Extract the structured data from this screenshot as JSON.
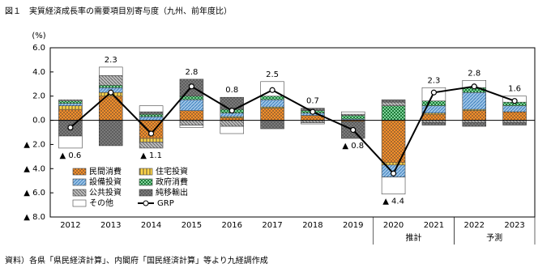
{
  "chart_data": {
    "type": "stacked-bar-line",
    "title": "図１　実質経済成長率の需要項目別寄与度（九州、前年度比）",
    "y_unit": "(%)",
    "categories": [
      "2012",
      "2013",
      "2014",
      "2015",
      "2016",
      "2017",
      "2018",
      "2019",
      "2020",
      "2021",
      "2022",
      "2023"
    ],
    "groups": [
      {
        "label": "推計",
        "from": 8,
        "to": 9
      },
      {
        "label": "予測",
        "from": 10,
        "to": 11
      }
    ],
    "ylim": [
      -8,
      6
    ],
    "yticks": [
      {
        "value": 6,
        "label": "6.0"
      },
      {
        "value": 4,
        "label": "4.0"
      },
      {
        "value": 2,
        "label": "2.0"
      },
      {
        "value": 0,
        "label": "0.0"
      },
      {
        "value": -2,
        "label": "▲ 2.0"
      },
      {
        "value": -4,
        "label": "▲ 4.0"
      },
      {
        "value": -6,
        "label": "▲ 6.0"
      },
      {
        "value": -8,
        "label": "▲ 8.0"
      }
    ],
    "series": [
      {
        "name": "民間消費",
        "color": "#f28e2b",
        "pattern": "dots",
        "values": [
          0.9,
          2.0,
          -1.5,
          0.8,
          0.2,
          1.0,
          0.4,
          -0.1,
          -3.5,
          0.5,
          0.8,
          0.7
        ]
      },
      {
        "name": "住宅投資",
        "color": "#ffd54a",
        "pattern": "vlines",
        "values": [
          0.3,
          0.3,
          -0.3,
          0,
          0.1,
          0.1,
          0,
          0,
          -0.2,
          0.1,
          0.1,
          0
        ]
      },
      {
        "name": "設備投資",
        "color": "#9cc3e6",
        "pattern": "diag",
        "values": [
          0.2,
          0.4,
          0.3,
          0.9,
          0.3,
          0.6,
          0.2,
          0.1,
          -1.0,
          0.6,
          1.4,
          0.5
        ]
      },
      {
        "name": "政府消費",
        "color": "#7fd39a",
        "pattern": "checks",
        "values": [
          0.2,
          0.2,
          0.2,
          0.3,
          0.3,
          0.3,
          0.2,
          0.3,
          1.2,
          0.4,
          0.4,
          0.3
        ]
      },
      {
        "name": "公共投資",
        "color": "#bdbdbd",
        "pattern": "diag2",
        "values": [
          0.1,
          0.8,
          -0.5,
          -0.4,
          -0.5,
          0,
          -0.2,
          0.1,
          0.3,
          -0.2,
          -0.2,
          -0.2
        ]
      },
      {
        "name": "純移輸出",
        "color": "#7a7a7a",
        "pattern": "dots",
        "values": [
          -1.3,
          -2.1,
          0.2,
          1.4,
          1.0,
          -0.7,
          0.2,
          -1.4,
          0.2,
          -0.2,
          -0.3,
          -0.2
        ]
      },
      {
        "name": "その他",
        "color": "#ffffff",
        "pattern": "none",
        "values": [
          -1.0,
          0.7,
          0.5,
          -0.2,
          -0.6,
          1.2,
          -0.1,
          0.2,
          -1.4,
          1.1,
          0.6,
          0.5
        ]
      }
    ],
    "line": {
      "name": "GRP",
      "color": "#000000",
      "values": [
        -0.6,
        2.3,
        -1.1,
        2.8,
        0.8,
        2.5,
        0.7,
        -0.8,
        -4.4,
        2.3,
        2.8,
        1.6
      ],
      "value_labels": [
        "▲ 0.6",
        "2.3",
        "▲ 1.1",
        "2.8",
        "0.8",
        "2.5",
        "0.7",
        "▲ 0.8",
        "▲ 4.4",
        "2.3",
        "2.8",
        "1.6"
      ]
    },
    "source": "資料）各県「県民経済計算」、内閣府「国民経済計算」等より九経調作成"
  }
}
